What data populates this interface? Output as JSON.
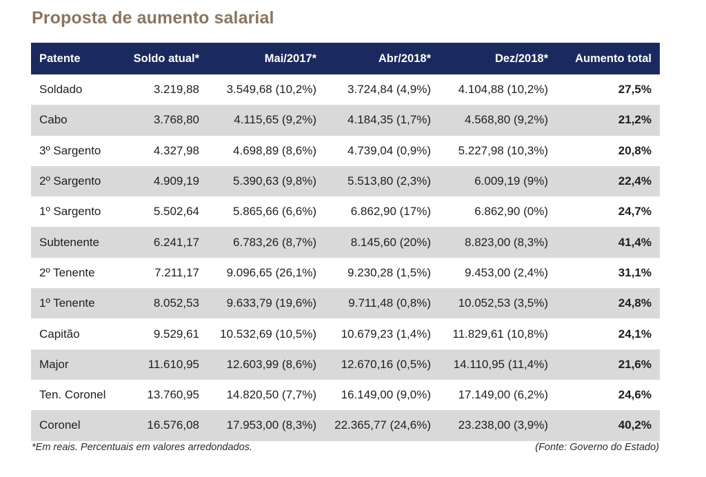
{
  "title": "Proposta de aumento salarial",
  "colors": {
    "title": "#8a7560",
    "header_bg": "#1b2a5e",
    "header_text": "#ffffff",
    "stripe": "#d9d9d9"
  },
  "table": {
    "headers": [
      "Patente",
      "Soldo atual*",
      "Mai/2017*",
      "Abr/2018*",
      "Dez/2018*",
      "Aumento total"
    ],
    "rows": [
      [
        "Soldado",
        "3.219,88",
        "3.549,68 (10,2%)",
        "3.724,84 (4,9%)",
        "4.104,88 (10,2%)",
        "27,5%"
      ],
      [
        "Cabo",
        "3.768,80",
        "4.115,65 (9,2%)",
        "4.184,35 (1,7%)",
        "4.568,80  (9,2%)",
        "21,2%"
      ],
      [
        "3º Sargento",
        "4.327,98",
        "4.698,89 (8,6%)",
        "4.739,04 (0,9%)",
        "5.227,98  (10,3%)",
        "20,8%"
      ],
      [
        "2º Sargento",
        "4.909,19",
        "5.390,63 (9,8%)",
        "5.513,80 (2,3%)",
        "6.009,19  (9%)",
        "22,4%"
      ],
      [
        "1º Sargento",
        "5.502,64",
        "5.865,66 (6,6%)",
        "6.862,90 (17%)",
        "6.862,90  (0%)",
        "24,7%"
      ],
      [
        "Subtenente",
        "6.241,17",
        "6.783,26 (8,7%)",
        "8.145,60 (20%)",
        "8.823,00 (8,3%)",
        "41,4%"
      ],
      [
        "2º Tenente",
        "7.211,17",
        "9.096,65 (26,1%)",
        "9.230,28 (1,5%)",
        "9.453,00  (2,4%)",
        "31,1%"
      ],
      [
        "1º Tenente",
        "8.052,53",
        "9.633,79 (19,6%)",
        "9.711,48 (0,8%)",
        "10.052,53 (3,5%)",
        "24,8%"
      ],
      [
        "Capitão",
        "9.529,61",
        "10.532,69 (10,5%)",
        "10.679,23 (1,4%)",
        "11.829,61 (10,8%)",
        "24,1%"
      ],
      [
        "Major",
        "11.610,95",
        "12.603,99 (8,6%)",
        "12.670,16 (0,5%)",
        "14.110,95 (11,4%)",
        "21,6%"
      ],
      [
        "Ten. Coronel",
        "13.760,95",
        "14.820,50 (7,7%)",
        "16.149,00 (9,0%)",
        "17.149,00 (6,2%)",
        "24,6%"
      ],
      [
        "Coronel",
        "16.576,08",
        "17.953,00 (8,3%)",
        "22.365,77 (24,6%)",
        "23.238,00 (3,9%)",
        "40,2%"
      ]
    ]
  },
  "footnote": "*Em reais. Percentuais em valores arredondados.",
  "source": "(Fonte: Governo do Estado)"
}
